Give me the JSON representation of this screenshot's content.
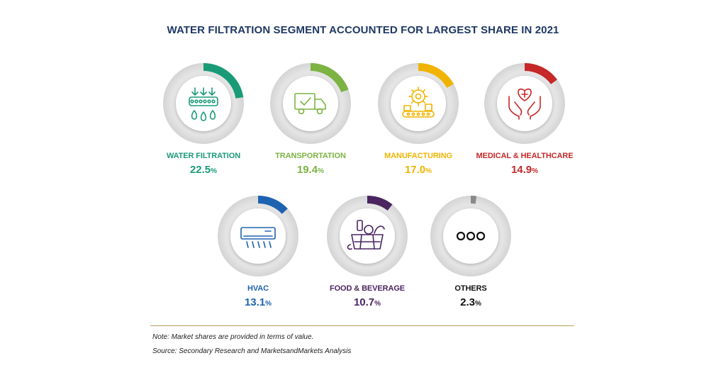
{
  "chart_data": {
    "type": "pie",
    "title": "WATER FILTRATION SEGMENT ACCOUNTED FOR LARGEST SHARE IN 2021",
    "unit": "%",
    "segments": [
      {
        "label": "WATER FILTRATION",
        "value": 22.5,
        "color": "#1a9b77",
        "icon": "water-filtration-icon"
      },
      {
        "label": "TRANSPORTATION",
        "value": 19.4,
        "color": "#7cb342",
        "icon": "delivery-truck-icon"
      },
      {
        "label": "MANUFACTURING",
        "value": 17.0,
        "color": "#f0b400",
        "icon": "gear-conveyor-icon"
      },
      {
        "label": "MEDICAL & HEALTHCARE",
        "value": 14.9,
        "color": "#c62828",
        "icon": "heart-hands-icon"
      },
      {
        "label": "HVAC",
        "value": 13.1,
        "color": "#1e63b0",
        "icon": "air-conditioner-icon"
      },
      {
        "label": "FOOD & BEVERAGE",
        "value": 10.7,
        "color": "#4a2560",
        "icon": "food-basket-icon"
      },
      {
        "label": "OTHERS",
        "value": 2.3,
        "color": "#8a8a8a",
        "icon": "more-dots-icon"
      }
    ]
  },
  "notes": {
    "note": "Note: Market shares are provided in terms of value.",
    "source": "Source: Secondary Research and MarketsandMarkets Analysis"
  }
}
